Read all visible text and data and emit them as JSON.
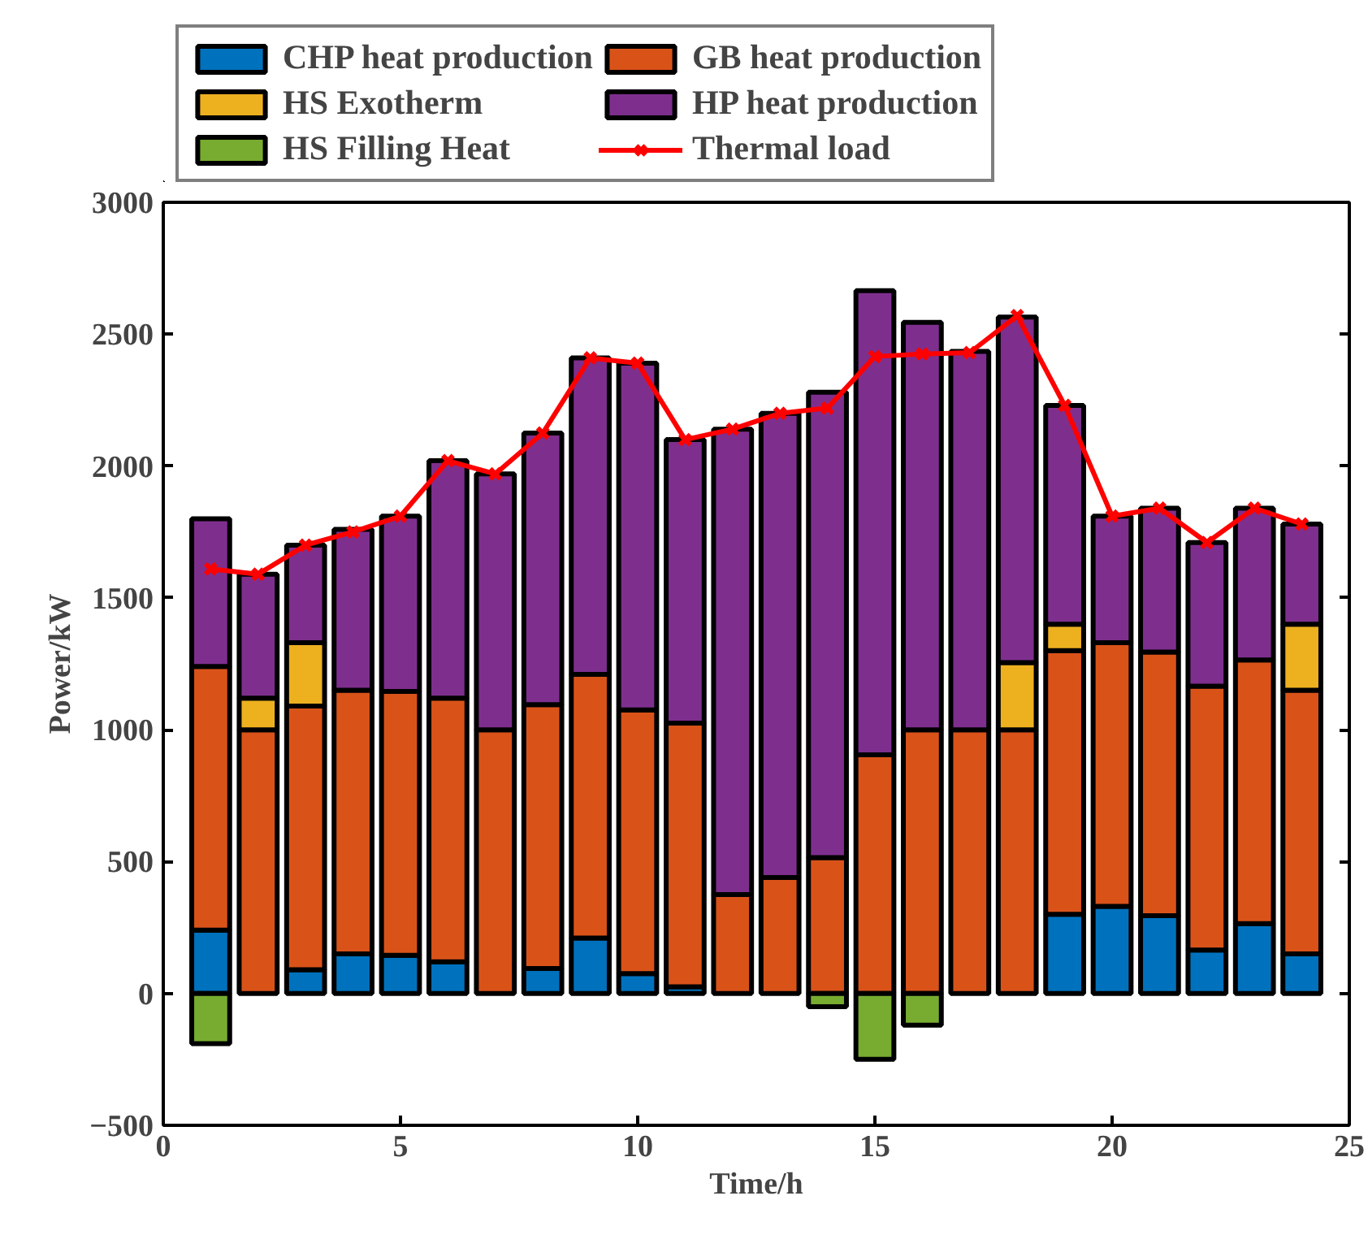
{
  "chart_data": {
    "type": "bar",
    "stacked": true,
    "xlabel": "Time/h",
    "ylabel": "Power/kW",
    "x": [
      1,
      2,
      3,
      4,
      5,
      6,
      7,
      8,
      9,
      10,
      11,
      12,
      13,
      14,
      15,
      16,
      17,
      18,
      19,
      20,
      21,
      22,
      23,
      24
    ],
    "xlim": [
      0,
      25
    ],
    "xticks": [
      0,
      5,
      10,
      15,
      20,
      25
    ],
    "ylim": [
      -500,
      3000
    ],
    "yticks": [
      -500,
      0,
      500,
      1000,
      1500,
      2000,
      2500,
      3000
    ],
    "grid": false,
    "legend": "top",
    "series": [
      {
        "name": "CHP heat production",
        "color": "#0072bd",
        "values": [
          240,
          0,
          90,
          150,
          145,
          120,
          0,
          95,
          210,
          75,
          25,
          0,
          0,
          0,
          0,
          0,
          0,
          0,
          300,
          330,
          295,
          165,
          265,
          150
        ]
      },
      {
        "name": "GB heat production",
        "color": "#d95319",
        "values": [
          1000,
          1000,
          1000,
          1000,
          1000,
          1000,
          1000,
          1000,
          1000,
          1000,
          1000,
          375,
          440,
          515,
          905,
          1000,
          1000,
          1000,
          1000,
          1000,
          1000,
          1000,
          1000,
          1000
        ]
      },
      {
        "name": "HS Exotherm",
        "color": "#edb120",
        "values": [
          0,
          120,
          240,
          0,
          0,
          0,
          0,
          0,
          0,
          0,
          0,
          0,
          0,
          0,
          0,
          0,
          0,
          255,
          100,
          0,
          0,
          0,
          0,
          250
        ]
      },
      {
        "name": "HP heat production",
        "color": "#7e2f8e",
        "values": [
          560,
          470,
          370,
          610,
          665,
          900,
          970,
          1030,
          1200,
          1315,
          1075,
          1765,
          1760,
          1765,
          1760,
          1545,
          1435,
          1310,
          830,
          480,
          545,
          545,
          575,
          380
        ]
      },
      {
        "name": "HS Filling Heat",
        "color": "#77ac30",
        "values": [
          -190,
          0,
          0,
          0,
          0,
          0,
          0,
          0,
          0,
          0,
          0,
          0,
          0,
          -50,
          -250,
          -120,
          0,
          0,
          0,
          0,
          0,
          0,
          0,
          0
        ]
      },
      {
        "name": "Thermal load",
        "color": "#ff0000",
        "type": "line",
        "marker": "cross",
        "values": [
          1610,
          1590,
          1700,
          1750,
          1810,
          2020,
          1970,
          2125,
          2410,
          2390,
          2100,
          2140,
          2200,
          2220,
          2415,
          2425,
          2430,
          2570,
          2230,
          1810,
          1840,
          1710,
          1840,
          1780
        ]
      }
    ]
  }
}
